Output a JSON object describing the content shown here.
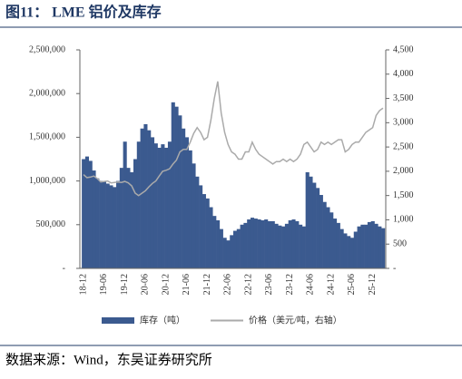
{
  "title": "图11：  LME 铝价及库存",
  "source": "数据来源：Wind，东吴证券研究所",
  "chart_data": {
    "type": "bar-line",
    "categories": [
      "18-12",
      null,
      null,
      null,
      null,
      null,
      "19-06",
      null,
      null,
      null,
      null,
      null,
      "19-12",
      null,
      null,
      null,
      null,
      null,
      "20-06",
      null,
      null,
      null,
      null,
      null,
      "20-12",
      null,
      null,
      null,
      null,
      null,
      "21-06",
      null,
      null,
      null,
      null,
      null,
      "21-12",
      null,
      null,
      null,
      null,
      null,
      "22-06",
      null,
      null,
      null,
      null,
      null,
      "22-12",
      null,
      null,
      null,
      null,
      null,
      "23-06",
      null,
      null,
      null,
      null,
      null,
      "23-12",
      null,
      null,
      null,
      null,
      null,
      "24-06",
      null,
      null,
      null,
      null,
      null,
      "24-12",
      null,
      null,
      null,
      null,
      null,
      "25-06",
      null,
      null,
      null,
      null,
      null,
      "25-12",
      null,
      null,
      null
    ],
    "series": [
      {
        "name": "库存（吨）",
        "color": "#3b5a8f",
        "kind": "area",
        "values": [
          1250000,
          1280000,
          1230000,
          1120000,
          1030000,
          1000000,
          1000000,
          970000,
          950000,
          930000,
          1000000,
          1150000,
          1450000,
          1150000,
          1100000,
          1250000,
          1450000,
          1600000,
          1650000,
          1580000,
          1500000,
          1430000,
          1380000,
          1420000,
          1380000,
          1450000,
          1900000,
          1850000,
          1750000,
          1600000,
          1500000,
          1350000,
          1200000,
          1050000,
          950000,
          850000,
          800000,
          700000,
          600000,
          550000,
          450000,
          350000,
          320000,
          380000,
          430000,
          450000,
          500000,
          520000,
          560000,
          580000,
          570000,
          560000,
          550000,
          560000,
          540000,
          540000,
          510000,
          490000,
          480000,
          510000,
          550000,
          560000,
          540000,
          500000,
          480000,
          1100000,
          1050000,
          980000,
          920000,
          840000,
          760000,
          700000,
          640000,
          570000,
          520000,
          450000,
          400000,
          370000,
          350000,
          420000,
          480000,
          500000,
          500000,
          530000,
          540000,
          510000,
          480000,
          460000
        ]
      },
      {
        "name": "价格（美元/吨，右轴）",
        "color": "#aaaaaa",
        "kind": "line",
        "axis": "y2",
        "values": [
          1930,
          1870,
          1880,
          1900,
          1850,
          1780,
          1790,
          1800,
          1760,
          1770,
          1780,
          1770,
          1790,
          1760,
          1700,
          1550,
          1500,
          1550,
          1600,
          1680,
          1750,
          1800,
          1900,
          2000,
          2020,
          2050,
          2150,
          2230,
          2400,
          2450,
          2450,
          2600,
          2780,
          2900,
          2800,
          2650,
          2700,
          3050,
          3500,
          3850,
          3200,
          2800,
          2550,
          2400,
          2350,
          2250,
          2250,
          2400,
          2400,
          2600,
          2450,
          2350,
          2300,
          2250,
          2200,
          2150,
          2200,
          2200,
          2250,
          2200,
          2250,
          2200,
          2250,
          2350,
          2550,
          2600,
          2500,
          2400,
          2450,
          2600,
          2550,
          2600,
          2550,
          2600,
          2650,
          2650,
          2400,
          2450,
          2550,
          2600,
          2600,
          2700,
          2800,
          2850,
          2900,
          3150,
          3250,
          3300
        ]
      }
    ],
    "ylim": [
      0,
      2500000
    ],
    "yticks": [
      {
        "value": 0,
        "label": "-"
      },
      {
        "value": 500000,
        "label": "500,000"
      },
      {
        "value": 1000000,
        "label": "1,000,000"
      },
      {
        "value": 1500000,
        "label": "1,500,000"
      },
      {
        "value": 2000000,
        "label": "2,000,000"
      },
      {
        "value": 2500000,
        "label": "2,500,000"
      }
    ],
    "y2lim": [
      0,
      4500
    ],
    "y2ticks": [
      {
        "value": 0,
        "label": "-"
      },
      500,
      {
        "value": 1000,
        "label": "1,000"
      },
      {
        "value": 1500,
        "label": "1,500"
      },
      {
        "value": 2000,
        "label": "2,000"
      },
      {
        "value": 2500,
        "label": "2,500"
      },
      {
        "value": 3000,
        "label": "3,000"
      },
      {
        "value": 3500,
        "label": "3,500"
      },
      {
        "value": 4000,
        "label": "4,000"
      },
      {
        "value": 4500,
        "label": "4,500"
      }
    ]
  }
}
